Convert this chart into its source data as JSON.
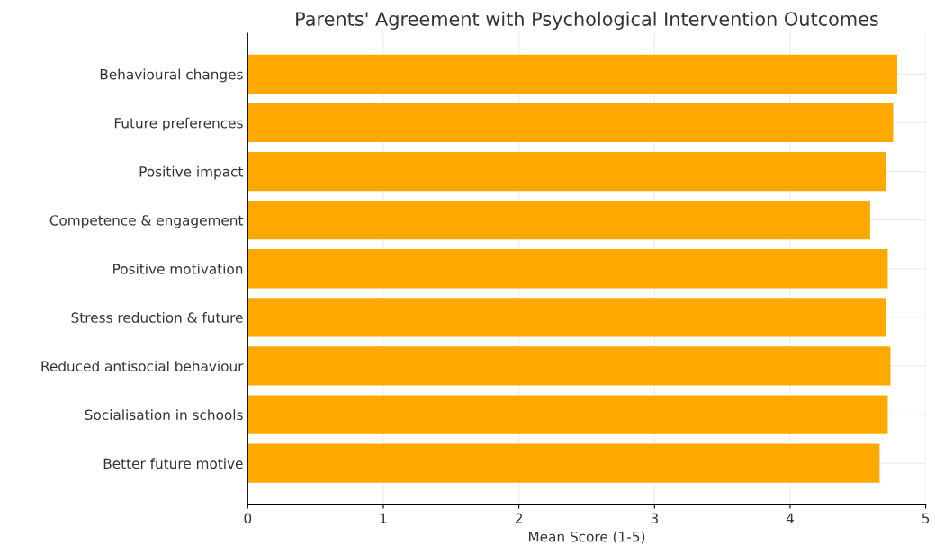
{
  "chart_data": {
    "type": "bar",
    "orientation": "horizontal",
    "title": "Parents' Agreement with Psychological Intervention Outcomes",
    "xlabel": "Mean Score (1-5)",
    "categories": [
      "Behavioural changes",
      "Future preferences",
      "Positive impact",
      "Competence & engagement",
      "Positive motivation",
      "Stress reduction & future",
      "Reduced antisocial behaviour",
      "Socialisation in schools",
      "Better future motive"
    ],
    "values": [
      4.79,
      4.76,
      4.71,
      4.59,
      4.72,
      4.71,
      4.74,
      4.72,
      4.66
    ],
    "color": "#ffa800",
    "xlim": [
      0,
      5
    ],
    "xticks": [
      0,
      1,
      2,
      3,
      4,
      5
    ],
    "grid": true
  }
}
